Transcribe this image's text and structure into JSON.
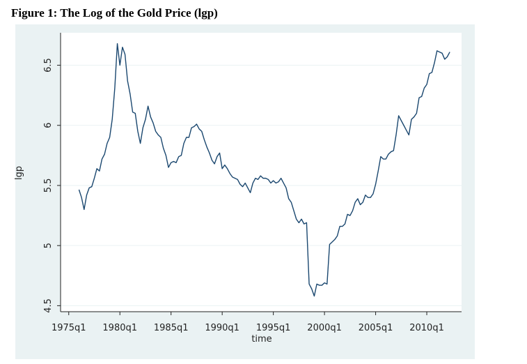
{
  "chart_data": {
    "type": "line",
    "title": "Figure 1: The Log of the Gold Price (lgp)",
    "x_label": "time",
    "y_label": "lgp",
    "xlim": [
      1974.2,
      2013.4
    ],
    "ylim": [
      4.45,
      6.77
    ],
    "xticks": [
      {
        "value": 1975,
        "label": "1975q1"
      },
      {
        "value": 1980,
        "label": "1980q1"
      },
      {
        "value": 1985,
        "label": "1985q1"
      },
      {
        "value": 1990,
        "label": "1990q1"
      },
      {
        "value": 1995,
        "label": "1995q1"
      },
      {
        "value": 2000,
        "label": "2000q1"
      },
      {
        "value": 2005,
        "label": "2005q1"
      },
      {
        "value": 2010,
        "label": "2010q1"
      }
    ],
    "yticks": [
      4.5,
      5,
      5.5,
      6,
      6.5
    ],
    "grid": true,
    "x": [
      1976,
      1976.25,
      1976.5,
      1976.75,
      1977,
      1977.25,
      1977.5,
      1977.75,
      1978,
      1978.25,
      1978.5,
      1978.75,
      1979,
      1979.25,
      1979.5,
      1979.75,
      1980,
      1980.25,
      1980.5,
      1980.75,
      1981,
      1981.25,
      1981.5,
      1981.75,
      1982,
      1982.25,
      1982.5,
      1982.75,
      1983,
      1983.25,
      1983.5,
      1983.75,
      1984,
      1984.25,
      1984.5,
      1984.75,
      1985,
      1985.25,
      1985.5,
      1985.75,
      1986,
      1986.25,
      1986.5,
      1986.75,
      1987,
      1987.25,
      1987.5,
      1987.75,
      1988,
      1988.25,
      1988.5,
      1988.75,
      1989,
      1989.25,
      1989.5,
      1989.75,
      1990,
      1990.25,
      1990.5,
      1990.75,
      1991,
      1991.25,
      1991.5,
      1991.75,
      1992,
      1992.25,
      1992.5,
      1992.75,
      1993,
      1993.25,
      1993.5,
      1993.75,
      1994,
      1994.25,
      1994.5,
      1994.75,
      1995,
      1995.25,
      1995.5,
      1995.75,
      1996,
      1996.25,
      1996.5,
      1996.75,
      1997,
      1997.25,
      1997.5,
      1997.75,
      1998,
      1998.25,
      1998.5,
      1998.75,
      1999,
      1999.25,
      1999.5,
      1999.75,
      2000,
      2000.25,
      2000.5,
      2000.75,
      2001,
      2001.25,
      2001.5,
      2001.75,
      2002,
      2002.25,
      2002.5,
      2002.75,
      2003,
      2003.25,
      2003.5,
      2003.75,
      2004,
      2004.25,
      2004.5,
      2004.75,
      2005,
      2005.25,
      2005.5,
      2005.75,
      2006,
      2006.25,
      2006.5,
      2006.75,
      2007,
      2007.25,
      2007.5,
      2007.75,
      2008,
      2008.25,
      2008.5,
      2008.75,
      2009,
      2009.25,
      2009.5,
      2009.75,
      2010,
      2010.25,
      2010.5,
      2010.75,
      2011,
      2011.25,
      2011.5,
      2011.75,
      2012,
      2012.25
    ],
    "series": [
      {
        "name": "lgp",
        "color": "#1a476f",
        "values": [
          5.465,
          5.4,
          5.3,
          5.42,
          5.48,
          5.49,
          5.56,
          5.64,
          5.62,
          5.72,
          5.76,
          5.85,
          5.9,
          6.05,
          6.31,
          6.68,
          6.5,
          6.65,
          6.59,
          6.37,
          6.26,
          6.11,
          6.1,
          5.95,
          5.85,
          5.98,
          6.05,
          6.16,
          6.07,
          6.02,
          5.95,
          5.92,
          5.9,
          5.81,
          5.75,
          5.65,
          5.69,
          5.7,
          5.69,
          5.74,
          5.75,
          5.85,
          5.9,
          5.9,
          5.98,
          5.99,
          6.01,
          5.97,
          5.95,
          5.88,
          5.82,
          5.77,
          5.71,
          5.68,
          5.74,
          5.77,
          5.64,
          5.67,
          5.64,
          5.6,
          5.57,
          5.56,
          5.55,
          5.51,
          5.49,
          5.52,
          5.48,
          5.44,
          5.52,
          5.56,
          5.55,
          5.58,
          5.56,
          5.56,
          5.55,
          5.52,
          5.54,
          5.52,
          5.53,
          5.56,
          5.52,
          5.48,
          5.39,
          5.36,
          5.29,
          5.22,
          5.19,
          5.22,
          5.18,
          5.19,
          4.68,
          4.64,
          4.58,
          4.68,
          4.67,
          4.67,
          4.69,
          4.68,
          5.01,
          5.03,
          5.05,
          5.08,
          5.16,
          5.16,
          5.18,
          5.26,
          5.25,
          5.29,
          5.36,
          5.39,
          5.34,
          5.36,
          5.42,
          5.4,
          5.4,
          5.43,
          5.51,
          5.62,
          5.74,
          5.72,
          5.72,
          5.76,
          5.78,
          5.79,
          5.92,
          6.08,
          6.04,
          6.0,
          5.96,
          5.92,
          6.05,
          6.07,
          6.1,
          6.23,
          6.24,
          6.31,
          6.34,
          6.43,
          6.44,
          6.52,
          6.62,
          6.61,
          6.6,
          6.55,
          6.57,
          6.61
        ]
      }
    ]
  }
}
